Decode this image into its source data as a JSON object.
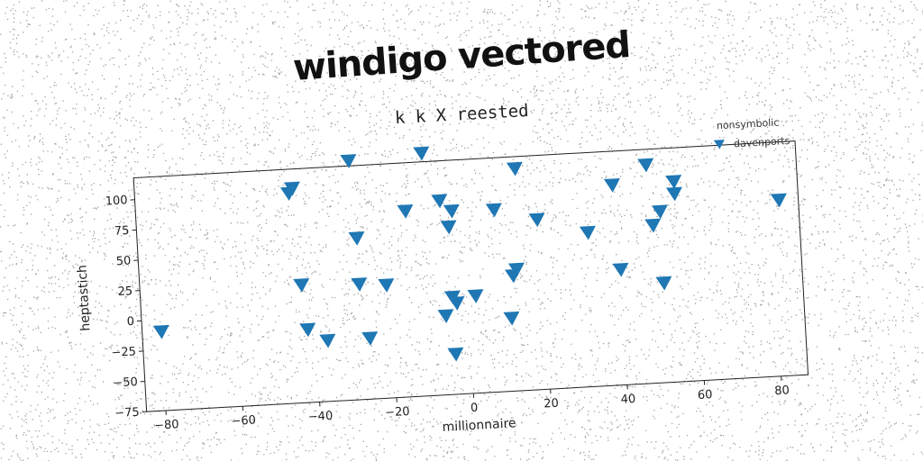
{
  "banner": {
    "text": "windigo vectored"
  },
  "chart_data": {
    "type": "scatter",
    "title": "k k X reested",
    "xlabel": "millionnaire",
    "ylabel": "heptastich",
    "xlim": [
      -85,
      87
    ],
    "ylim": [
      -75,
      118
    ],
    "xticks": [
      -80,
      -60,
      -40,
      -20,
      0,
      20,
      40,
      60,
      80
    ],
    "yticks": [
      -75,
      -50,
      -25,
      0,
      25,
      50,
      75,
      100
    ],
    "xtick_labels": [
      "−80",
      "−60",
      "−40",
      "−20",
      "0",
      "20",
      "40",
      "60",
      "80"
    ],
    "ytick_labels": [
      "−75",
      "−50",
      "−25",
      "0",
      "25",
      "50",
      "75",
      "100"
    ],
    "grid": false,
    "legend": {
      "title": "nonsymbolic",
      "placement": "top-right"
    },
    "marker_color": "#1f77b4",
    "series": [
      {
        "name": "davenports",
        "marker": "triangle-down",
        "points": [
          {
            "x": -80,
            "y": -10
          },
          {
            "x": -45,
            "y": 98
          },
          {
            "x": -44,
            "y": 102
          },
          {
            "x": -43,
            "y": 22
          },
          {
            "x": -42,
            "y": -15
          },
          {
            "x": -37,
            "y": -25
          },
          {
            "x": -29,
            "y": 122
          },
          {
            "x": -28,
            "y": 58
          },
          {
            "x": -28,
            "y": 20
          },
          {
            "x": -26,
            "y": -25
          },
          {
            "x": -21,
            "y": 18
          },
          {
            "x": -15,
            "y": 78
          },
          {
            "x": -10,
            "y": 125
          },
          {
            "x": -6,
            "y": 85
          },
          {
            "x": -6,
            "y": -10
          },
          {
            "x": -4,
            "y": 63
          },
          {
            "x": -4,
            "y": 5
          },
          {
            "x": -3,
            "y": 76
          },
          {
            "x": -3,
            "y": 0
          },
          {
            "x": -4,
            "y": -42
          },
          {
            "x": 2,
            "y": 5
          },
          {
            "x": 8,
            "y": 75
          },
          {
            "x": 11,
            "y": -15
          },
          {
            "x": 12,
            "y": 20
          },
          {
            "x": 13,
            "y": 25
          },
          {
            "x": 14,
            "y": 108
          },
          {
            "x": 19,
            "y": 65
          },
          {
            "x": 32,
            "y": 52
          },
          {
            "x": 39,
            "y": 90
          },
          {
            "x": 40,
            "y": 20
          },
          {
            "x": 48,
            "y": 105
          },
          {
            "x": 49,
            "y": 55
          },
          {
            "x": 51,
            "y": 66
          },
          {
            "x": 51,
            "y": 7
          },
          {
            "x": 55,
            "y": 80
          },
          {
            "x": 55,
            "y": 90
          },
          {
            "x": 82,
            "y": 70
          }
        ]
      }
    ]
  }
}
